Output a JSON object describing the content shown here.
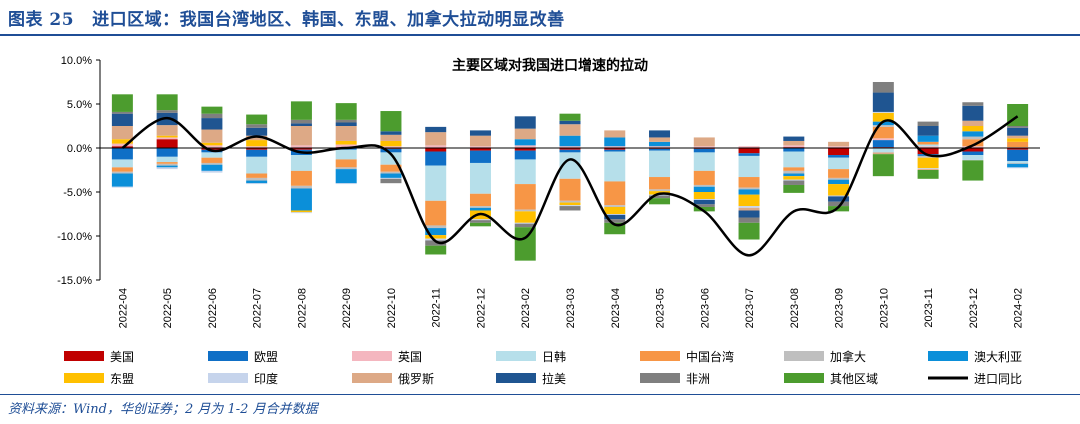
{
  "figure": {
    "label": "图表 25",
    "title": "进口区域：我国台湾地区、韩国、东盟、加拿大拉动明显改善"
  },
  "source_note": "资料来源：Wind，华创证券；2 月为 1-2 月合并数据",
  "chart_data": {
    "type": "bar",
    "stacked": true,
    "title": "主要区域对我国进口增速的拉动",
    "xlabel": "",
    "ylabel": "",
    "ylim": [
      -15,
      10
    ],
    "yticks": [
      "10.0%",
      "5.0%",
      "0.0%",
      "-5.0%",
      "-10.0%",
      "-15.0%"
    ],
    "grid": false,
    "legend_position": "bottom",
    "categories": [
      "2022-04",
      "2022-05",
      "2022-06",
      "2022-07",
      "2022-08",
      "2022-09",
      "2022-10",
      "2022-11",
      "2022-12",
      "2023-02",
      "2023-03",
      "2023-04",
      "2023-05",
      "2023-06",
      "2023-07",
      "2023-08",
      "2023-09",
      "2023-10",
      "2023-11",
      "2023-12",
      "2024-02"
    ],
    "series": [
      {
        "name": "美国",
        "color": "#c00000",
        "values": [
          0.2,
          1.0,
          -0.2,
          -0.2,
          -0.2,
          0.1,
          -0.1,
          -0.4,
          -0.3,
          -0.3,
          -0.2,
          -0.2,
          -0.1,
          -0.1,
          -0.6,
          0.1,
          -0.8,
          0.1,
          -0.7,
          -0.4,
          -0.2
        ]
      },
      {
        "name": "欧盟",
        "color": "#0f6fc6",
        "values": [
          -1.3,
          -1.0,
          -0.3,
          -0.8,
          -0.6,
          -0.2,
          -0.4,
          -1.6,
          -1.4,
          -1.0,
          -0.3,
          -0.2,
          -0.2,
          -0.4,
          -0.3,
          -0.4,
          -0.3,
          0.8,
          -0.2,
          -0.4,
          -1.3
        ]
      },
      {
        "name": "英国",
        "color": "#f4b6bf",
        "values": [
          0.3,
          0.2,
          0.3,
          0.2,
          0.3,
          0.3,
          0.2,
          0.3,
          0.2,
          0.3,
          0.2,
          0.2,
          0.2,
          0.2,
          0.2,
          0.2,
          0.2,
          0.2,
          0.2,
          0.2,
          0.1
        ]
      },
      {
        "name": "日韩",
        "color": "#b6dfea",
        "values": [
          -0.9,
          -0.6,
          -0.6,
          -1.9,
          -1.8,
          -1.1,
          -1.4,
          -4.0,
          -3.5,
          -2.8,
          -3.0,
          -3.4,
          -3.0,
          -2.1,
          -2.4,
          -1.8,
          -1.3,
          -0.5,
          0.2,
          -0.5,
          -0.2
        ]
      },
      {
        "name": "中国台湾",
        "color": "#f79646",
        "values": [
          -0.5,
          -0.2,
          -0.6,
          -0.5,
          -1.7,
          -0.9,
          -0.8,
          -2.8,
          -1.4,
          -2.9,
          -2.5,
          -2.7,
          -1.4,
          -1.6,
          -1.2,
          -0.4,
          -1.0,
          1.3,
          0.3,
          0.8,
          0.6
        ]
      },
      {
        "name": "加拿大",
        "color": "#bfbfbf",
        "values": [
          -0.2,
          -0.2,
          -0.2,
          -0.3,
          -0.3,
          -0.2,
          -0.2,
          -0.3,
          -0.2,
          -0.2,
          -0.2,
          -0.2,
          -0.2,
          -0.2,
          -0.2,
          -0.3,
          -0.2,
          0.2,
          -0.2,
          0.3,
          -0.1
        ]
      },
      {
        "name": "澳大利亚",
        "color": "#0b8fd9",
        "values": [
          -1.5,
          -0.2,
          -0.7,
          -0.3,
          -2.5,
          -1.6,
          -0.5,
          -0.8,
          -0.3,
          0.7,
          1.2,
          1.0,
          0.5,
          -0.6,
          -0.6,
          -0.3,
          -0.5,
          0.4,
          0.7,
          0.6,
          -0.4
        ]
      },
      {
        "name": "东盟",
        "color": "#ffc000",
        "values": [
          0.5,
          0.2,
          0.3,
          0.7,
          -0.2,
          0.4,
          0.6,
          -0.4,
          -1.0,
          -1.3,
          -0.3,
          -0.8,
          -0.4,
          -0.8,
          -1.3,
          -0.4,
          -1.3,
          1.0,
          -1.2,
          0.6,
          0.4
        ]
      },
      {
        "name": "印度",
        "color": "#c6d4ec",
        "values": [
          -0.1,
          -0.2,
          -0.2,
          -0.1,
          -0.1,
          -0.1,
          -0.1,
          -0.2,
          -0.1,
          -0.1,
          -0.1,
          -0.1,
          -0.1,
          -0.1,
          -0.2,
          -0.1,
          -0.1,
          0.1,
          -0.1,
          -0.1,
          -0.1
        ]
      },
      {
        "name": "俄罗斯",
        "color": "#dda986",
        "values": [
          1.5,
          1.2,
          1.5,
          0.5,
          2.2,
          1.7,
          0.7,
          1.5,
          1.2,
          1.2,
          1.3,
          0.8,
          0.5,
          1.0,
          -0.3,
          0.5,
          0.5,
          -0.2,
          -0.1,
          0.6,
          0.3
        ]
      },
      {
        "name": "拉美",
        "color": "#1f5591",
        "values": [
          1.4,
          1.4,
          1.3,
          0.9,
          0.3,
          0.4,
          0.4,
          0.6,
          0.6,
          1.4,
          0.4,
          -0.5,
          0.8,
          -0.5,
          -0.8,
          0.5,
          -0.6,
          2.2,
          1.1,
          1.7,
          0.9
        ]
      },
      {
        "name": "非洲",
        "color": "#7f7f7f",
        "values": [
          0.2,
          0.3,
          0.5,
          0.4,
          0.4,
          0.3,
          -0.5,
          -0.6,
          -0.3,
          -0.4,
          -0.5,
          -0.4,
          -0.3,
          -0.3,
          -0.6,
          -0.5,
          -0.5,
          1.2,
          0.5,
          0.4,
          0.2
        ]
      },
      {
        "name": "其他区域",
        "color": "#4c9c2e",
        "values": [
          2.0,
          1.8,
          0.8,
          1.1,
          2.1,
          1.9,
          2.3,
          -1.0,
          -0.4,
          -3.8,
          0.8,
          -1.3,
          -0.7,
          -0.5,
          -1.9,
          -0.9,
          -0.6,
          -2.5,
          -1.0,
          -2.3,
          2.5
        ]
      }
    ],
    "line": {
      "name": "进口同比",
      "color": "#000000",
      "values": [
        0.0,
        3.4,
        -0.3,
        1.3,
        -0.5,
        0.0,
        -0.7,
        -10.6,
        -7.5,
        -10.2,
        -1.3,
        -8.7,
        -5.2,
        -7.2,
        -12.2,
        -7.2,
        -6.7,
        3.0,
        -0.8,
        0.3,
        3.6
      ]
    }
  }
}
